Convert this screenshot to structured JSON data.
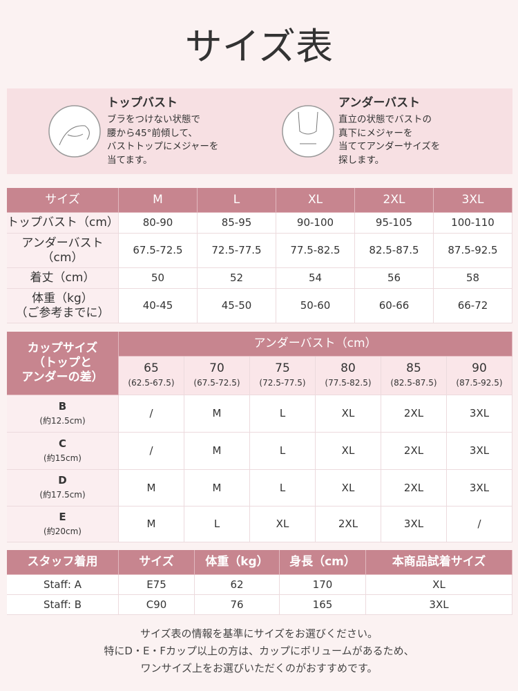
{
  "title": "サイズ表",
  "guides": [
    {
      "heading": "トップバスト",
      "lines": [
        "ブラをつけない状態で",
        "腰から45°前傾して、",
        "バストトップにメジャーを",
        "当てます。"
      ]
    },
    {
      "heading": "アンダーバスト",
      "lines": [
        "直立の状態でバストの",
        "真下にメジャーを",
        "当ててアンダーサイズを",
        "探します。"
      ]
    }
  ],
  "size_table": {
    "header": [
      "サイズ",
      "M",
      "L",
      "XL",
      "2XL",
      "3XL"
    ],
    "rows": [
      [
        [
          "トップバスト（cm）"
        ],
        "80-90",
        "85-95",
        "90-100",
        "95-105",
        "100-110"
      ],
      [
        [
          "アンダーバスト",
          "（cm）"
        ],
        "67.5-72.5",
        "72.5-77.5",
        "77.5-82.5",
        "82.5-87.5",
        "87.5-92.5"
      ],
      [
        [
          "着丈（cm）"
        ],
        "50",
        "52",
        "54",
        "56",
        "58"
      ],
      [
        [
          "体重（kg）",
          "（ご参考までに）"
        ],
        "40-45",
        "45-50",
        "50-60",
        "60-66",
        "66-72"
      ]
    ]
  },
  "cup_table": {
    "corner": [
      "カップサイズ",
      "（トップと",
      "アンダーの差）"
    ],
    "group_header": "アンダーバスト（cm）",
    "columns": [
      {
        "band": "65",
        "range": "(62.5-67.5)"
      },
      {
        "band": "70",
        "range": "(67.5-72.5)"
      },
      {
        "band": "75",
        "range": "(72.5-77.5)"
      },
      {
        "band": "80",
        "range": "(77.5-82.5)"
      },
      {
        "band": "85",
        "range": "(82.5-87.5)"
      },
      {
        "band": "90",
        "range": "(87.5-92.5)"
      }
    ],
    "rows": [
      {
        "cup": "B",
        "diff": "(約12.5cm)",
        "sizes": [
          "/",
          "M",
          "L",
          "XL",
          "2XL",
          "3XL"
        ]
      },
      {
        "cup": "C",
        "diff": "(約15cm)",
        "sizes": [
          "/",
          "M",
          "L",
          "XL",
          "2XL",
          "3XL"
        ]
      },
      {
        "cup": "D",
        "diff": "(約17.5cm)",
        "sizes": [
          "M",
          "M",
          "L",
          "XL",
          "2XL",
          "3XL"
        ]
      },
      {
        "cup": "E",
        "diff": "(約20cm)",
        "sizes": [
          "M",
          "L",
          "XL",
          "2XL",
          "3XL",
          "/"
        ]
      }
    ]
  },
  "staff_table": {
    "header": [
      "スタッフ着用",
      "サイズ",
      "体重（kg）",
      "身長（cm）",
      "本商品試着サイズ"
    ],
    "rows": [
      [
        "Staff: A",
        "E75",
        "62",
        "170",
        "XL"
      ],
      [
        "Staff: B",
        "C90",
        "76",
        "165",
        "3XL"
      ]
    ]
  },
  "note": [
    "サイズ表の情報を基準にサイズをお選びください。",
    "特にD・E・Fカップ以上の方は、カップにボリュームがあるため、",
    "ワンサイズ上をお選びいただくのがおすすめです。"
  ]
}
